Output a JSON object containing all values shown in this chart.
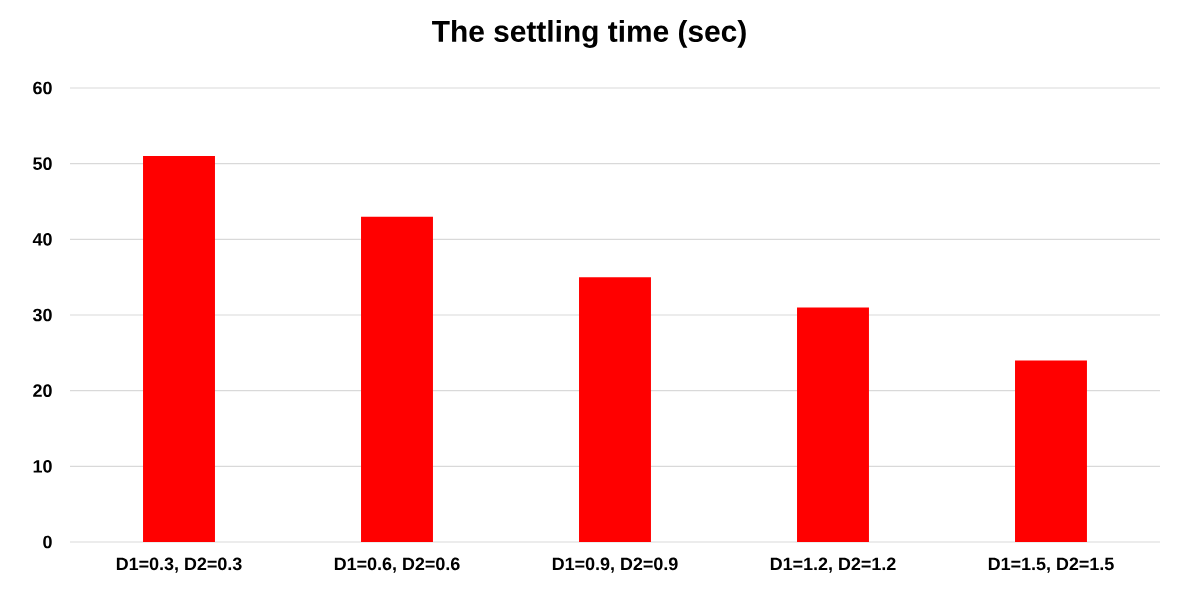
{
  "chart_data": {
    "type": "bar",
    "title": "The settling time (sec)",
    "categories": [
      "D1=0.3, D2=0.3",
      "D1=0.6, D2=0.6",
      "D1=0.9, D2=0.9",
      "D1=1.2, D2=1.2",
      "D1=1.5, D2=1.5"
    ],
    "values": [
      51,
      43,
      35,
      31,
      24
    ],
    "color": "#ff0000",
    "ylim": [
      0,
      60
    ],
    "yticks": [
      0,
      10,
      20,
      30,
      40,
      50,
      60
    ],
    "grid": "y"
  }
}
